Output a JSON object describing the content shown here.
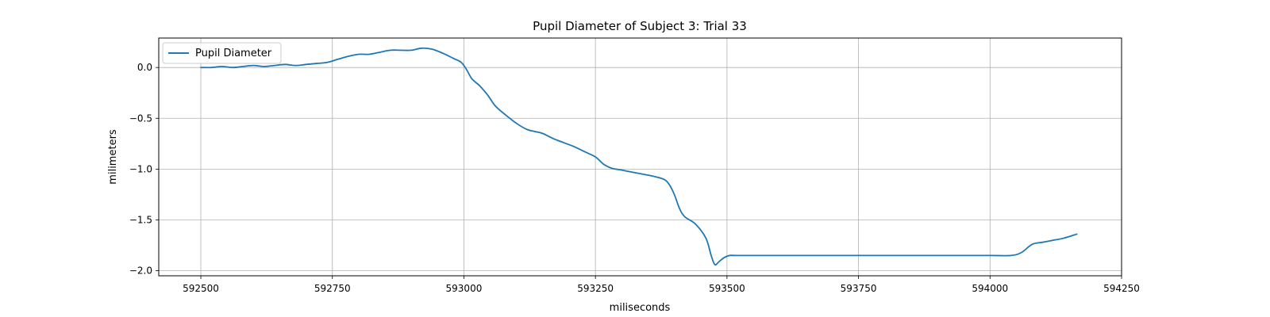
{
  "chart_data": {
    "type": "line",
    "title": "Pupil Diameter of Subject 3: Trial 33",
    "xlabel": "miliseconds",
    "ylabel": "milimeters",
    "xlim": [
      592420,
      594250
    ],
    "ylim": [
      -2.05,
      0.29
    ],
    "xticks": [
      592500,
      592750,
      593000,
      593250,
      593500,
      593750,
      594000,
      594250
    ],
    "yticks": [
      0.0,
      -0.5,
      -1.0,
      -1.5,
      -2.0
    ],
    "xtick_labels": [
      "592500",
      "592750",
      "593000",
      "593250",
      "593500",
      "593750",
      "594000",
      "594250"
    ],
    "ytick_labels": [
      "0.0",
      "−0.5",
      "−1.0",
      "−1.5",
      "−2.0"
    ],
    "grid": true,
    "legend_position": "top-left",
    "series_color": "#1f77b4",
    "series": [
      {
        "name": "Pupil Diameter",
        "x": [
          592500,
          592520,
          592540,
          592560,
          592580,
          592600,
          592620,
          592640,
          592660,
          592680,
          592700,
          592720,
          592740,
          592760,
          592780,
          592800,
          592820,
          592840,
          592860,
          592880,
          592900,
          592920,
          592940,
          592960,
          592980,
          592995,
          593005,
          593015,
          593030,
          593045,
          593060,
          593080,
          593100,
          593120,
          593135,
          593150,
          593170,
          593190,
          593210,
          593230,
          593250,
          593265,
          593280,
          593300,
          593320,
          593340,
          593360,
          593380,
          593390,
          593400,
          593410,
          593420,
          593440,
          593460,
          593470,
          593477,
          593485,
          593495,
          593505,
          593520,
          593600,
          593700,
          593800,
          593900,
          594000,
          594040,
          594060,
          594080,
          594100,
          594120,
          594140,
          594165
        ],
        "y": [
          0.0,
          0.0,
          0.01,
          0.0,
          0.01,
          0.02,
          0.01,
          0.02,
          0.03,
          0.02,
          0.03,
          0.04,
          0.05,
          0.08,
          0.11,
          0.13,
          0.13,
          0.15,
          0.17,
          0.17,
          0.17,
          0.19,
          0.18,
          0.14,
          0.09,
          0.05,
          -0.02,
          -0.11,
          -0.18,
          -0.27,
          -0.38,
          -0.47,
          -0.55,
          -0.61,
          -0.63,
          -0.65,
          -0.7,
          -0.74,
          -0.78,
          -0.83,
          -0.88,
          -0.95,
          -0.99,
          -1.01,
          -1.03,
          -1.05,
          -1.07,
          -1.1,
          -1.15,
          -1.25,
          -1.39,
          -1.47,
          -1.54,
          -1.68,
          -1.85,
          -1.94,
          -1.91,
          -1.87,
          -1.85,
          -1.85,
          -1.85,
          -1.85,
          -1.85,
          -1.85,
          -1.85,
          -1.85,
          -1.82,
          -1.74,
          -1.72,
          -1.7,
          -1.68,
          -1.64
        ]
      }
    ]
  }
}
